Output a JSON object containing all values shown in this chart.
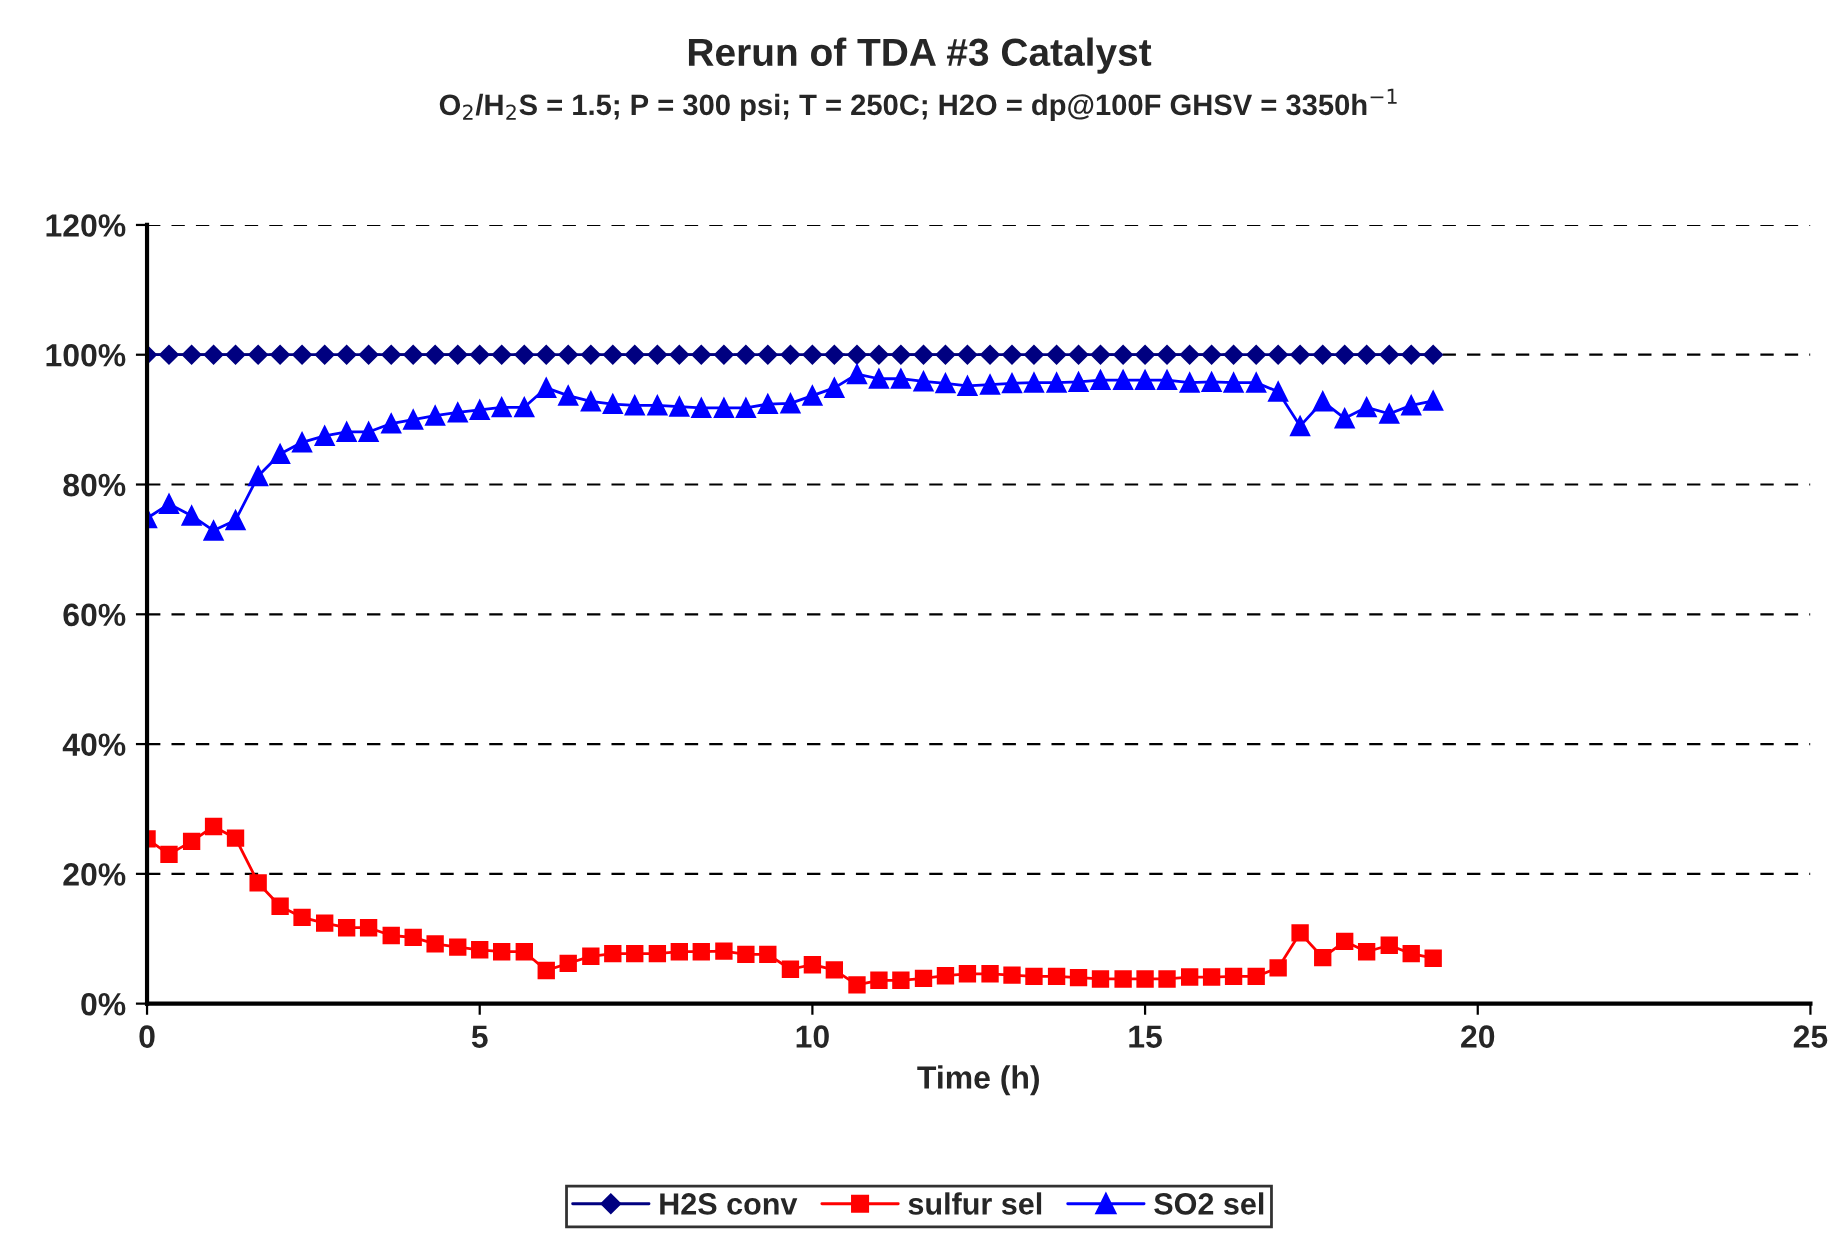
{
  "chart_data": {
    "type": "line",
    "title": "Rerun of TDA #3 Catalyst",
    "subtitle": "O$_{2}$/H$_{2}$S = 1.5; P = 300 psi; T = 250C; H2O = dp@100F GHSV = 3350h$^{−1}$",
    "xlabel": "Time (h)",
    "x": [
      0,
      0.33,
      0.67,
      1,
      1.33,
      1.67,
      2,
      2.33,
      2.67,
      3,
      3.33,
      3.67,
      4,
      4.33,
      4.67,
      5,
      5.33,
      5.67,
      6,
      6.33,
      6.67,
      7,
      7.33,
      7.67,
      8,
      8.33,
      8.67,
      9,
      9.33,
      9.67,
      10,
      10.33,
      10.67,
      11,
      11.33,
      11.67,
      12,
      12.33,
      12.67,
      13,
      13.33,
      13.67,
      14,
      14.33,
      14.67,
      15,
      15.33,
      15.67,
      16,
      16.33,
      16.67,
      17,
      17.33,
      17.67,
      18,
      18.33,
      18.67,
      19,
      19.33
    ],
    "series": [
      {
        "name": "H2S conv",
        "color": "#000080",
        "marker": "diamond",
        "values": [
          100,
          100,
          100,
          100,
          100,
          100,
          100,
          100,
          100,
          100,
          100,
          100,
          100,
          100,
          100,
          100,
          100,
          100,
          100,
          100,
          100,
          100,
          100,
          100,
          100,
          100,
          100,
          100,
          100,
          100,
          100,
          100,
          100,
          100,
          100,
          100,
          100,
          100,
          100,
          100,
          100,
          100,
          100,
          100,
          100,
          100,
          100,
          100,
          100,
          100,
          100,
          100,
          100,
          100,
          100,
          100,
          100,
          100,
          100
        ]
      },
      {
        "name": "sulfur sel",
        "color": "#ff0000",
        "marker": "square",
        "values": [
          25.4,
          23,
          25,
          27.3,
          25.5,
          18.6,
          15,
          13.3,
          12.4,
          11.7,
          11.7,
          10.5,
          10.2,
          9.2,
          8.7,
          8.3,
          8,
          8,
          5.1,
          6.2,
          7.3,
          7.7,
          7.7,
          7.7,
          8,
          8,
          8.1,
          7.6,
          7.6,
          5.3,
          6,
          5.2,
          2.9,
          3.6,
          3.6,
          3.9,
          4.3,
          4.6,
          4.6,
          4.4,
          4.2,
          4.2,
          4,
          3.8,
          3.8,
          3.8,
          3.8,
          4.1,
          4.1,
          4.2,
          4.2,
          5.5,
          10.9,
          7.1,
          9.6,
          8,
          9,
          7.7,
          7
        ]
      },
      {
        "name": "SO2 sel",
        "color": "#0000ff",
        "marker": "triangle",
        "values": [
          74.8,
          77,
          75.2,
          72.9,
          74.5,
          81.3,
          84.7,
          86.5,
          87.5,
          88.1,
          88.1,
          89.4,
          90,
          90.6,
          91.1,
          91.5,
          91.9,
          91.9,
          94.9,
          93.7,
          92.8,
          92.4,
          92.2,
          92.2,
          92,
          91.8,
          91.8,
          91.8,
          92.4,
          92.5,
          93.7,
          94.9,
          97,
          96.3,
          96.3,
          95.9,
          95.6,
          95.2,
          95.4,
          95.6,
          95.7,
          95.7,
          95.8,
          96.1,
          96.1,
          96.1,
          96.1,
          95.7,
          95.8,
          95.7,
          95.7,
          94.3,
          89,
          92.8,
          90.2,
          91.9,
          90.9,
          92.2,
          92.9
        ]
      }
    ],
    "xlim": [
      0,
      25
    ],
    "xticks": [
      0,
      5,
      10,
      15,
      20,
      25
    ],
    "ylim": [
      0,
      120
    ],
    "yticks": [
      {
        "value": 0,
        "label": "0%"
      },
      {
        "value": 20,
        "label": "20%"
      },
      {
        "value": 40,
        "label": "40%"
      },
      {
        "value": 60,
        "label": "60%"
      },
      {
        "value": 80,
        "label": "80%"
      },
      {
        "value": 100,
        "label": "100%"
      },
      {
        "value": 120,
        "label": "120%"
      }
    ],
    "grid": "y",
    "legend": "bottom",
    "line_style": "solid"
  }
}
